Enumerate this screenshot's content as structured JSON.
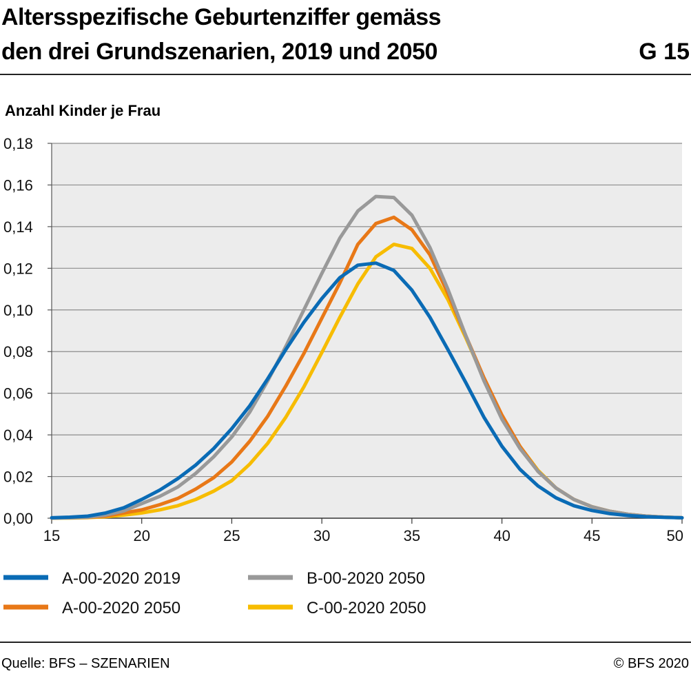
{
  "header": {
    "title_line1": "Altersspezifische Geburtenziffer gemäss",
    "title_line2": "den drei Grundszenarien, 2019 und 2050",
    "figure_number": "G 15"
  },
  "footer": {
    "source": "Quelle: BFS – SZENARIEN",
    "copyright": "© BFS 2020"
  },
  "chart_data": {
    "type": "line",
    "title": "Altersspezifische Geburtenziffer gemäss den drei Grundszenarien, 2019 und 2050",
    "ylabel": "Anzahl Kinder je Frau",
    "xlabel": "",
    "xlim": [
      15,
      50
    ],
    "ylim": [
      0,
      0.18
    ],
    "x_ticks": [
      15,
      20,
      25,
      30,
      35,
      40,
      45,
      50
    ],
    "y_ticks": [
      "0,00",
      "0,02",
      "0,04",
      "0,06",
      "0,08",
      "0,10",
      "0,12",
      "0,14",
      "0,16",
      "0,18"
    ],
    "grid": "horizontal",
    "legend_position": "bottom",
    "x": [
      15,
      16,
      17,
      18,
      19,
      20,
      21,
      22,
      23,
      24,
      25,
      26,
      27,
      28,
      29,
      30,
      31,
      32,
      33,
      34,
      35,
      36,
      37,
      38,
      39,
      40,
      41,
      42,
      43,
      44,
      45,
      46,
      47,
      48,
      49,
      50
    ],
    "series": [
      {
        "name": "A-00-2020 2019",
        "color": "#0a6bb5",
        "values": [
          0.0002,
          0.0005,
          0.001,
          0.0025,
          0.005,
          0.009,
          0.0135,
          0.019,
          0.0255,
          0.0335,
          0.043,
          0.054,
          0.067,
          0.081,
          0.094,
          0.1055,
          0.1155,
          0.1215,
          0.1225,
          0.119,
          0.1095,
          0.0965,
          0.081,
          0.065,
          0.0485,
          0.0345,
          0.0235,
          0.0155,
          0.0098,
          0.006,
          0.0037,
          0.0022,
          0.0013,
          0.0007,
          0.0004,
          0.0002
        ]
      },
      {
        "name": "B-00-2020 2050",
        "color": "#999999",
        "values": [
          0.0001,
          0.0002,
          0.0005,
          0.0015,
          0.0035,
          0.007,
          0.0105,
          0.015,
          0.0215,
          0.0295,
          0.039,
          0.051,
          0.066,
          0.0825,
          0.1,
          0.1175,
          0.1345,
          0.1475,
          0.1545,
          0.154,
          0.1455,
          0.13,
          0.11,
          0.0875,
          0.066,
          0.0475,
          0.0335,
          0.0225,
          0.0145,
          0.009,
          0.0055,
          0.0033,
          0.0019,
          0.001,
          0.0005,
          0.0002
        ]
      },
      {
        "name": "A-00-2020 2050",
        "color": "#e87817",
        "values": [
          0.0001,
          0.0002,
          0.0004,
          0.001,
          0.0025,
          0.004,
          0.0065,
          0.0095,
          0.014,
          0.0195,
          0.027,
          0.037,
          0.049,
          0.0635,
          0.079,
          0.096,
          0.113,
          0.1315,
          0.1415,
          0.1445,
          0.1385,
          0.1265,
          0.108,
          0.0875,
          0.0675,
          0.0495,
          0.0345,
          0.0225,
          0.0145,
          0.009,
          0.0055,
          0.0033,
          0.0019,
          0.001,
          0.0005,
          0.0002
        ]
      },
      {
        "name": "C-00-2020 2050",
        "color": "#f7bc00",
        "values": [
          0.0001,
          0.0001,
          0.0003,
          0.0007,
          0.0015,
          0.0025,
          0.004,
          0.006,
          0.009,
          0.013,
          0.018,
          0.026,
          0.036,
          0.0485,
          0.063,
          0.0795,
          0.0965,
          0.1125,
          0.1255,
          0.1315,
          0.1295,
          0.12,
          0.105,
          0.0865,
          0.067,
          0.049,
          0.0345,
          0.023,
          0.0145,
          0.009,
          0.0055,
          0.0033,
          0.0019,
          0.001,
          0.0005,
          0.0002
        ]
      }
    ],
    "legend_order": [
      "A-00-2020 2019",
      "B-00-2020 2050",
      "A-00-2020 2050",
      "C-00-2020 2050"
    ]
  }
}
